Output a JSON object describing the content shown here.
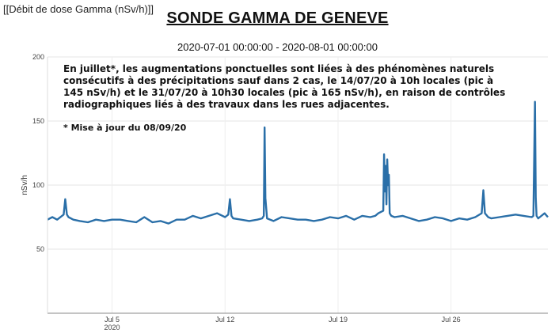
{
  "header": {
    "label": "[[Débit de dose Gamma (nSv/h)]]"
  },
  "chart_data": {
    "type": "line",
    "title": "SONDE GAMMA DE GENEVE",
    "subtitle": "2020-07-01 00:00:00 - 2020-08-01 00:00:00",
    "annotation": "En juillet*, les augmentations ponctuelles sont liées à des phénomènes naturels consécutifs à des précipitations sauf dans 2 cas, le 14/07/20 à 10h locales (pic à 145 nSv/h) et le 31/07/20 à 10h30 locales (pic à 165 nSv/h), en raison de contrôles radiographiques liés à des travaux dans les rues adjacentes.",
    "footnote": "* Mise à jour du 08/09/20",
    "ylabel": "nSv/h",
    "xlabel": "",
    "ylim": [
      0,
      200
    ],
    "xlim": [
      1,
      32
    ],
    "y_ticks": [
      50,
      100,
      150,
      200
    ],
    "x_ticks": [
      {
        "day": 5,
        "label": "Jul 5",
        "sublabel": "2020"
      },
      {
        "day": 12,
        "label": "Jul 12",
        "sublabel": ""
      },
      {
        "day": 19,
        "label": "Jul 19",
        "sublabel": ""
      },
      {
        "day": 26,
        "label": "Jul 26",
        "sublabel": ""
      }
    ],
    "line_color": "#2a6fa8",
    "grid": true,
    "series": [
      {
        "name": "",
        "x": [
          1.0,
          1.3,
          1.6,
          1.9,
          2.0,
          2.1,
          2.2,
          2.3,
          2.6,
          3.0,
          3.5,
          4.0,
          4.5,
          5.0,
          5.5,
          6.0,
          6.5,
          7.0,
          7.5,
          8.0,
          8.5,
          9.0,
          9.5,
          10.0,
          10.5,
          11.0,
          11.5,
          12.0,
          12.2,
          12.3,
          12.4,
          12.5,
          13.0,
          13.5,
          14.0,
          14.3,
          14.4,
          14.45,
          14.5,
          14.6,
          15.0,
          15.5,
          16.0,
          16.5,
          17.0,
          17.5,
          18.0,
          18.5,
          19.0,
          19.5,
          20.0,
          20.5,
          21.0,
          21.3,
          21.5,
          21.8,
          21.85,
          21.9,
          21.95,
          22.0,
          22.05,
          22.1,
          22.15,
          22.2,
          22.3,
          22.5,
          23.0,
          23.5,
          24.0,
          24.5,
          25.0,
          25.5,
          26.0,
          26.5,
          27.0,
          27.5,
          27.9,
          28.0,
          28.1,
          28.3,
          28.5,
          29.0,
          29.5,
          30.0,
          30.5,
          31.0,
          31.1,
          31.2,
          31.25,
          31.3,
          31.4,
          31.5,
          31.8,
          32.0
        ],
        "values": [
          73,
          75,
          73,
          76,
          77,
          89,
          77,
          75,
          73,
          72,
          71,
          73,
          72,
          73,
          73,
          72,
          71,
          75,
          71,
          72,
          70,
          73,
          73,
          76,
          74,
          76,
          78,
          75,
          77,
          89,
          76,
          74,
          73,
          72,
          73,
          74,
          76,
          145,
          90,
          74,
          72,
          75,
          74,
          73,
          73,
          72,
          73,
          75,
          74,
          76,
          73,
          76,
          75,
          76,
          78,
          80,
          124,
          95,
          115,
          85,
          120,
          100,
          108,
          78,
          76,
          75,
          76,
          74,
          72,
          73,
          75,
          74,
          72,
          74,
          73,
          75,
          78,
          96,
          78,
          75,
          74,
          75,
          76,
          77,
          76,
          75,
          76,
          165,
          90,
          76,
          74,
          75,
          78,
          75
        ]
      }
    ]
  }
}
